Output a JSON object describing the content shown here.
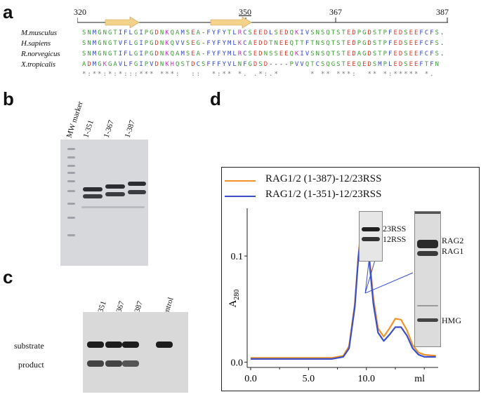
{
  "panels": {
    "a": "a",
    "b": "b",
    "c": "c",
    "d": "d"
  },
  "alignment": {
    "ruler": [
      "320",
      "350",
      "367",
      "387"
    ],
    "rows": [
      {
        "name": "M.musculus",
        "seq": "SNMGNGTIFLGIPGDNKQAMSEA-FYFYTLRCSEEDLSEDQKIVSNSQTSTEDPGDSTPFEDSEEFCFS."
      },
      {
        "name": "H.sapiens",
        "seq": "SNMGNGTVFLGIPGDNKQVVSEG-FYFYMLKCAEDDTNEEQTTFTNSQTSTEDPGDSTPFEDSEEFCFS."
      },
      {
        "name": "R.norvegicus",
        "seq": "SNMGNGTIFLGIPGDNKQAMSEA-FYFYMLRCSEDNSSEEQKIVSNSQTSTEDAGDSTPFEDSEEFCFS."
      },
      {
        "name": "X.tropicalis",
        "seq": "ADMGKGAVLFGIPVDNKHQSTDCSFFFYVLNFGDSD----PVVQTCSQGSTEEQEDSMPLEDSEEFTFN"
      }
    ],
    "conservation": "*:**:*:*:::*** ***:  ::  *:** *. .*:.*      * ** ***:  ** *:***** *.",
    "colors": {
      "green": "#3a9a32",
      "red": "#d43a2a",
      "blue": "#3446c8",
      "magenta": "#c036c2",
      "arrow": "#f5d28c"
    }
  },
  "panel_b": {
    "lanes": [
      "MW marker",
      "1-351",
      "1-367",
      "1-387"
    ]
  },
  "panel_c": {
    "lanes": [
      "1-351",
      "1-367",
      "1-387",
      "control"
    ],
    "row_labels": [
      "substrate",
      "product"
    ]
  },
  "chart_data": {
    "type": "line",
    "legend": [
      "RAG1/2 (1-387)-12/23RSS",
      "RAG1/2 (1-351)-12/23RSS"
    ],
    "colors": [
      "#f0942a",
      "#3b4fc8"
    ],
    "ylabel": "A280",
    "xlabel": "ml",
    "xticks": [
      "0.0",
      "5.0",
      "10.0"
    ],
    "yticks": [
      "0.0",
      "0.1"
    ],
    "xlim": [
      -0.3,
      16.2
    ],
    "ylim": [
      -0.005,
      0.145
    ],
    "series": [
      {
        "name": "RAG1/2 (1-387)-12/23RSS",
        "x": [
          0,
          7.0,
          8.0,
          8.5,
          9.0,
          9.3,
          9.6,
          9.8,
          10.0,
          10.3,
          10.6,
          11.0,
          11.5,
          12.0,
          12.5,
          13.0,
          13.5,
          14.0,
          14.5,
          15.0,
          16.0
        ],
        "y": [
          0.004,
          0.004,
          0.006,
          0.015,
          0.055,
          0.1,
          0.132,
          0.139,
          0.128,
          0.095,
          0.06,
          0.032,
          0.024,
          0.032,
          0.041,
          0.04,
          0.03,
          0.016,
          0.009,
          0.007,
          0.006
        ]
      },
      {
        "name": "RAG1/2 (1-351)-12/23RSS",
        "x": [
          0,
          7.0,
          8.0,
          8.5,
          9.0,
          9.3,
          9.6,
          9.8,
          10.0,
          10.3,
          10.6,
          11.0,
          11.5,
          12.0,
          12.5,
          13.0,
          13.5,
          14.0,
          14.5,
          15.0,
          16.0
        ],
        "y": [
          0.003,
          0.003,
          0.005,
          0.013,
          0.052,
          0.098,
          0.128,
          0.134,
          0.124,
          0.09,
          0.055,
          0.028,
          0.02,
          0.026,
          0.033,
          0.033,
          0.025,
          0.013,
          0.007,
          0.005,
          0.005
        ]
      }
    ]
  },
  "inset_gels": {
    "rss_labels": [
      "23RSS",
      "12RSS"
    ],
    "protein_labels": [
      "RAG2",
      "RAG1",
      "HMG"
    ]
  }
}
